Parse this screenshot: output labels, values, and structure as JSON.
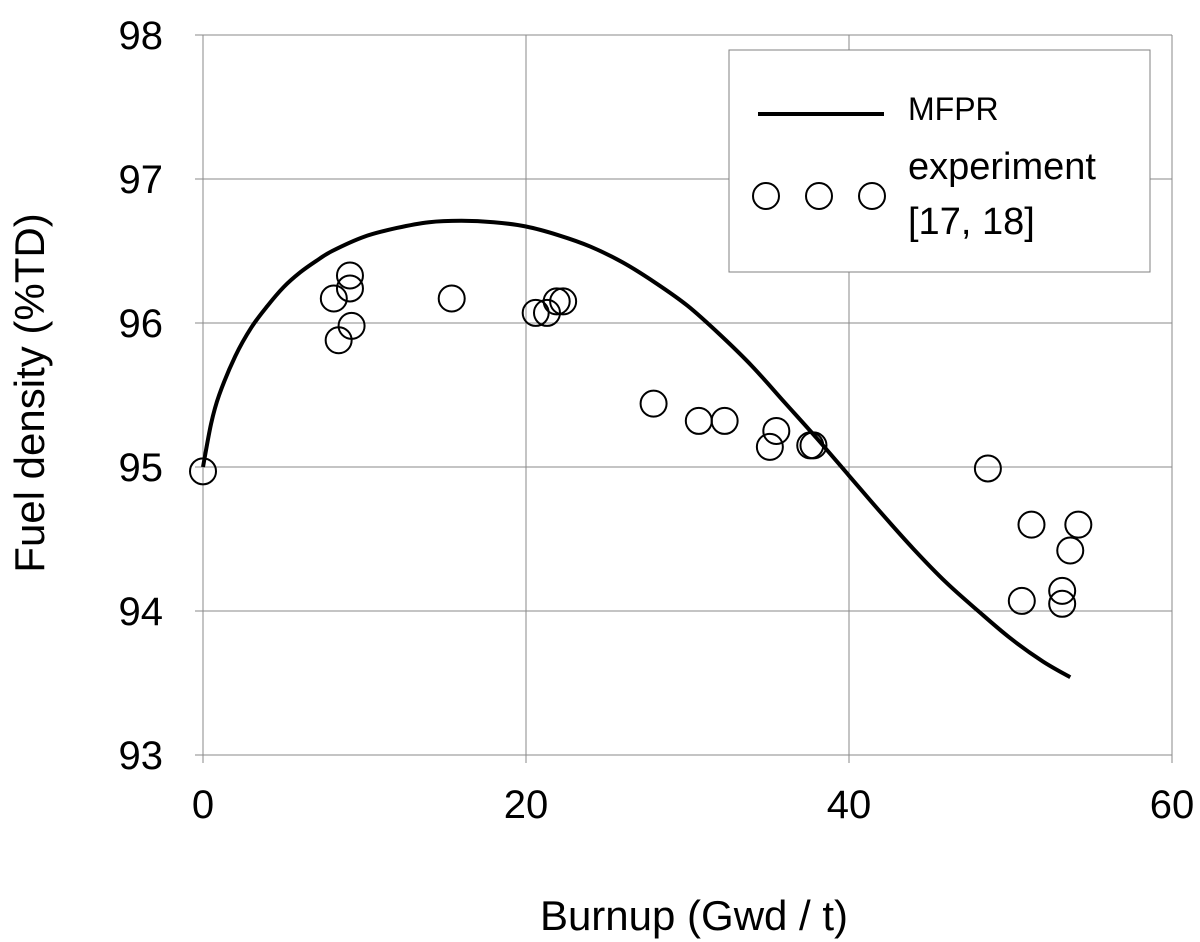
{
  "chart_data": {
    "type": "scatter",
    "title": "",
    "xlabel": "Burnup (Gwd / t)",
    "ylabel": "Fuel density (%TD)",
    "xlim": [
      0,
      60
    ],
    "ylim": [
      93,
      98
    ],
    "xticks": [
      0,
      20,
      40,
      60
    ],
    "yticks": [
      93,
      94,
      95,
      96,
      97,
      98
    ],
    "grid": true,
    "legend_placement": "top-right",
    "series": [
      {
        "name": "MFPR",
        "kind": "line",
        "color": "#000000",
        "points": [
          [
            0,
            95.0
          ],
          [
            0.5,
            95.3
          ],
          [
            1,
            95.5
          ],
          [
            2,
            95.77
          ],
          [
            3,
            95.97
          ],
          [
            4,
            96.12
          ],
          [
            5,
            96.25
          ],
          [
            6,
            96.35
          ],
          [
            7,
            96.43
          ],
          [
            8,
            96.5
          ],
          [
            10,
            96.6
          ],
          [
            12,
            96.66
          ],
          [
            14,
            96.7
          ],
          [
            16,
            96.71
          ],
          [
            18,
            96.7
          ],
          [
            20,
            96.67
          ],
          [
            22,
            96.61
          ],
          [
            24,
            96.53
          ],
          [
            26,
            96.42
          ],
          [
            28,
            96.28
          ],
          [
            30,
            96.12
          ],
          [
            32,
            95.92
          ],
          [
            34,
            95.7
          ],
          [
            36,
            95.45
          ],
          [
            38,
            95.2
          ],
          [
            40,
            94.94
          ],
          [
            42,
            94.68
          ],
          [
            44,
            94.43
          ],
          [
            46,
            94.2
          ],
          [
            48,
            94.0
          ],
          [
            50,
            93.81
          ],
          [
            52,
            93.65
          ],
          [
            53.7,
            93.54
          ]
        ]
      },
      {
        "name": "experiment [17, 18]",
        "kind": "scatter",
        "marker": "open-circle",
        "color": "#000000",
        "points": [
          [
            0,
            94.97
          ],
          [
            8.1,
            96.17
          ],
          [
            8.4,
            95.88
          ],
          [
            9.1,
            96.33
          ],
          [
            9.1,
            96.24
          ],
          [
            9.2,
            95.98
          ],
          [
            15.4,
            96.17
          ],
          [
            20.6,
            96.07
          ],
          [
            21.3,
            96.07
          ],
          [
            21.9,
            96.15
          ],
          [
            22.3,
            96.15
          ],
          [
            27.9,
            95.44
          ],
          [
            30.7,
            95.32
          ],
          [
            32.3,
            95.32
          ],
          [
            35.1,
            95.14
          ],
          [
            35.5,
            95.25
          ],
          [
            37.6,
            95.15
          ],
          [
            37.8,
            95.15
          ],
          [
            48.6,
            94.99
          ],
          [
            50.7,
            94.07
          ],
          [
            51.3,
            94.6
          ],
          [
            53.2,
            94.14
          ],
          [
            53.2,
            94.05
          ],
          [
            53.7,
            94.42
          ],
          [
            54.2,
            94.6
          ]
        ]
      }
    ],
    "legend": {
      "line_label": "MFPR",
      "scatter_label_line1": "experiment",
      "scatter_label_line2": "[17, 18]"
    }
  }
}
